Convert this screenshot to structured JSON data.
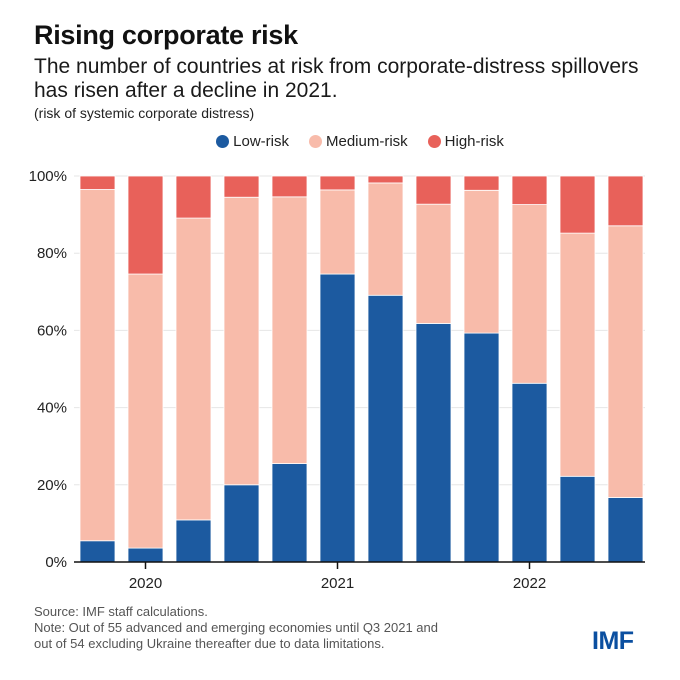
{
  "header": {
    "title": "Rising corporate risk",
    "subtitle": "The number of countries at risk from corporate-distress spillovers has risen after a decline in 2021.",
    "unit_note": "(risk of systemic corporate distress)"
  },
  "footer": {
    "source": "Source: IMF staff calculations.",
    "note_line1": "Note: Out of 55 advanced and emerging economies until Q3 2021 and",
    "note_line2": "out of 54 excluding Ukraine thereafter due to data limitations.",
    "logo": "IMF"
  },
  "chart_data": {
    "type": "bar",
    "stacked": true,
    "title": "Rising corporate risk",
    "subtitle": "The number of countries at risk from corporate-distress spillovers has risen after a decline in 2021.",
    "ylabel": "(risk of systemic corporate distress)",
    "xlabel": "",
    "ylim": [
      0,
      100
    ],
    "yticks": [
      0,
      20,
      40,
      60,
      80,
      100
    ],
    "ytick_labels": [
      "0%",
      "20%",
      "40%",
      "60%",
      "80%",
      "100%"
    ],
    "grid": true,
    "legend_position": "top-center",
    "categories": [
      "2019Q4",
      "2020Q1",
      "2020Q2",
      "2020Q3",
      "2020Q4",
      "2021Q1",
      "2021Q2",
      "2021Q3",
      "2021Q4",
      "2022Q1",
      "2022Q2",
      "2022Q3"
    ],
    "x_tick_labels": [
      {
        "index": 1,
        "label": "2020"
      },
      {
        "index": 5,
        "label": "2021"
      },
      {
        "index": 9,
        "label": "2022"
      }
    ],
    "series": [
      {
        "name": "Low-risk",
        "color": "#1c5aa0",
        "values": [
          5.5,
          3.6,
          10.9,
          20.0,
          25.5,
          74.6,
          69.1,
          61.8,
          59.3,
          46.3,
          22.2,
          16.7
        ]
      },
      {
        "name": "Medium-risk",
        "color": "#f8bbaa",
        "values": [
          91.0,
          71.0,
          78.2,
          74.5,
          69.1,
          21.8,
          29.1,
          30.9,
          37.0,
          46.3,
          63.0,
          70.4
        ]
      },
      {
        "name": "High-risk",
        "color": "#e8615a",
        "values": [
          3.5,
          25.4,
          10.9,
          5.5,
          5.4,
          3.6,
          1.8,
          7.3,
          3.7,
          7.4,
          14.8,
          12.9
        ]
      }
    ]
  }
}
